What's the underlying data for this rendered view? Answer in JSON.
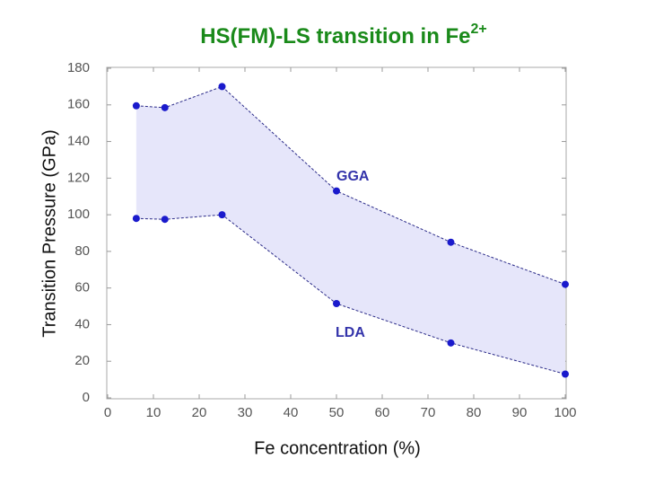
{
  "chart_data": {
    "type": "line",
    "title": "HS(FM)-LS transition in Fe",
    "title_superscript": "2+",
    "x_label": "Fe concentration (%)",
    "y_label": "Transition Pressure (GPa)",
    "x": [
      6.25,
      12.5,
      25,
      50,
      75,
      100
    ],
    "series": [
      {
        "name": "GGA",
        "color": "#1a1acc",
        "values": [
          159.5,
          158.5,
          170,
          113,
          85,
          62
        ]
      },
      {
        "name": "LDA",
        "color": "#1a1acc",
        "values": [
          98,
          97.5,
          100,
          51.5,
          30,
          13
        ]
      }
    ],
    "fill_between": "#e6e6fa",
    "xlim": [
      0,
      100
    ],
    "xticks": [
      0,
      10,
      20,
      30,
      40,
      50,
      60,
      70,
      80,
      90,
      100
    ],
    "ylim": [
      0,
      180
    ],
    "yticks": [
      0,
      20,
      40,
      60,
      80,
      100,
      120,
      140,
      160,
      180
    ],
    "grid": false
  }
}
